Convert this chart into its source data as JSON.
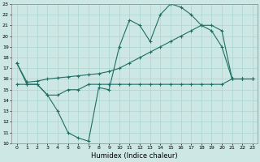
{
  "xlabel": "Humidex (Indice chaleur)",
  "background_color": "#cde8e4",
  "grid_color": "#a8d5cf",
  "line_color": "#1e6e64",
  "xlim": [
    -0.5,
    23.5
  ],
  "ylim": [
    10,
    23
  ],
  "xticks": [
    0,
    1,
    2,
    3,
    4,
    5,
    6,
    7,
    8,
    9,
    10,
    11,
    12,
    13,
    14,
    15,
    16,
    17,
    18,
    19,
    20,
    21,
    22,
    23
  ],
  "yticks": [
    10,
    11,
    12,
    13,
    14,
    15,
    16,
    17,
    18,
    19,
    20,
    21,
    22,
    23
  ],
  "line1_x": [
    0,
    1,
    2,
    3,
    4,
    5,
    6,
    7,
    8,
    9,
    10,
    11,
    12,
    13,
    14,
    15,
    16,
    17,
    18,
    19,
    20,
    21,
    22,
    23
  ],
  "line1_y": [
    17.5,
    15.5,
    15.5,
    14.5,
    13.0,
    11.0,
    10.5,
    10.2,
    15.2,
    15.0,
    19.0,
    21.5,
    21.0,
    19.5,
    22.0,
    23.0,
    22.7,
    22.0,
    21.0,
    20.5,
    19.0,
    16.0,
    16.0,
    null
  ],
  "line2_x": [
    0,
    1,
    2,
    3,
    4,
    5,
    6,
    7,
    8,
    9,
    10,
    11,
    12,
    13,
    14,
    15,
    16,
    17,
    18,
    19,
    20,
    21,
    22,
    23
  ],
  "line2_y": [
    17.5,
    15.7,
    15.8,
    16.0,
    16.1,
    16.2,
    16.3,
    16.4,
    16.5,
    16.7,
    17.0,
    17.5,
    18.0,
    18.5,
    19.0,
    19.5,
    20.0,
    20.5,
    21.0,
    21.0,
    20.5,
    16.0,
    16.0,
    16.0
  ],
  "line3_x": [
    0,
    1,
    2,
    3,
    4,
    5,
    6,
    7,
    8,
    9,
    10,
    11,
    12,
    13,
    14,
    15,
    16,
    17,
    18,
    19,
    20,
    21,
    22,
    23
  ],
  "line3_y": [
    15.5,
    15.5,
    15.5,
    14.5,
    14.5,
    15.0,
    15.0,
    15.5,
    15.5,
    15.5,
    15.5,
    15.5,
    15.5,
    15.5,
    15.5,
    15.5,
    15.5,
    15.5,
    15.5,
    15.5,
    15.5,
    16.0,
    16.0,
    16.0
  ]
}
